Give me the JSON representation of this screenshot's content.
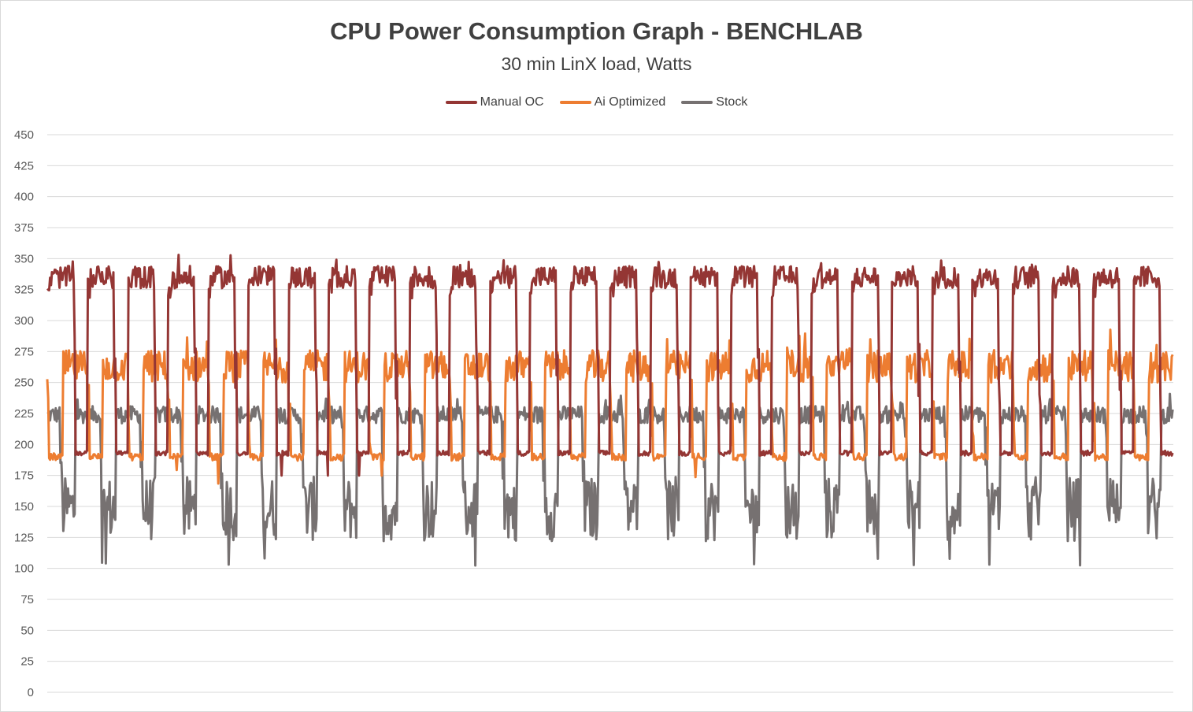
{
  "chart_data": {
    "type": "line",
    "title": "CPU Power Consumption Graph - BENCHLAB",
    "subtitle": "30 min LinX load, Watts",
    "xlabel": "",
    "ylabel": "",
    "ylim": [
      0,
      450
    ],
    "yticks": [
      "0",
      "25",
      "50",
      "75",
      "100",
      "125",
      "150",
      "175",
      "200",
      "225",
      "250",
      "275",
      "300",
      "325",
      "350",
      "375",
      "400",
      "425",
      "450"
    ],
    "grid": true,
    "legend_position": "top",
    "cycles": 28,
    "series": [
      {
        "name": "Manual OC",
        "color": "#943634",
        "high_level": 332,
        "low_level": 193
      },
      {
        "name": "Ai Optimized",
        "color": "#ed7d31",
        "high_level": 263,
        "low_level": 190
      },
      {
        "name": "Stock",
        "color": "#767171",
        "high_level": 224,
        "low_level": 145
      }
    ]
  }
}
